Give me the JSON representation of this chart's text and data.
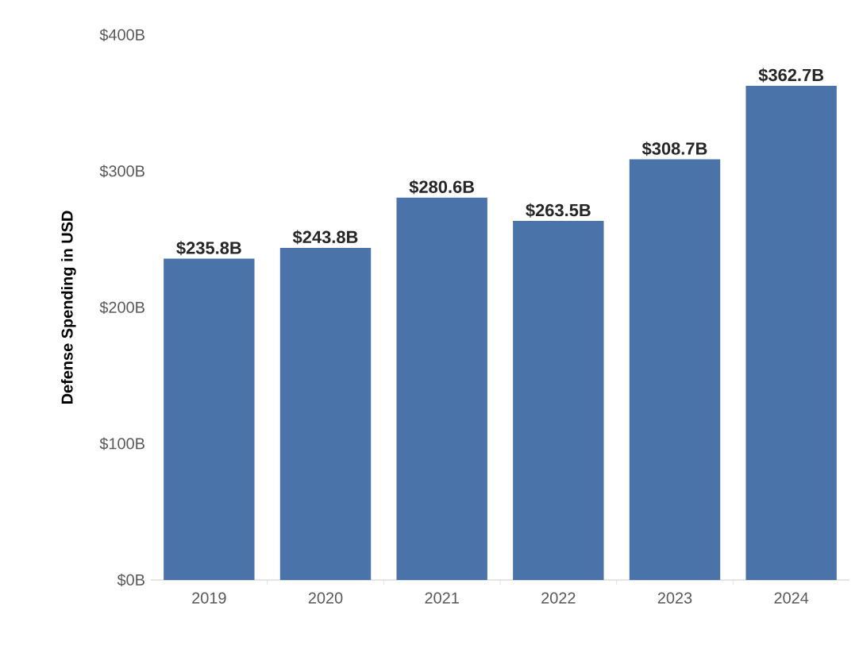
{
  "chart_data": {
    "type": "bar",
    "ylabel": "Defense Spending in USD",
    "categories": [
      "2019",
      "2020",
      "2021",
      "2022",
      "2023",
      "2024"
    ],
    "values": [
      235.8,
      243.8,
      280.6,
      263.5,
      308.7,
      362.7
    ],
    "value_labels": [
      "$235.8B",
      "$243.8B",
      "$280.6B",
      "$263.5B",
      "$308.7B",
      "$362.7B"
    ],
    "color": "#4a74a9",
    "ylim": [
      0,
      400
    ],
    "yticks": [
      {
        "value": 0,
        "label": "$0B"
      },
      {
        "value": 100,
        "label": "$100B"
      },
      {
        "value": 200,
        "label": "$200B"
      },
      {
        "value": 300,
        "label": "$300B"
      },
      {
        "value": 400,
        "label": "$400B"
      }
    ]
  }
}
